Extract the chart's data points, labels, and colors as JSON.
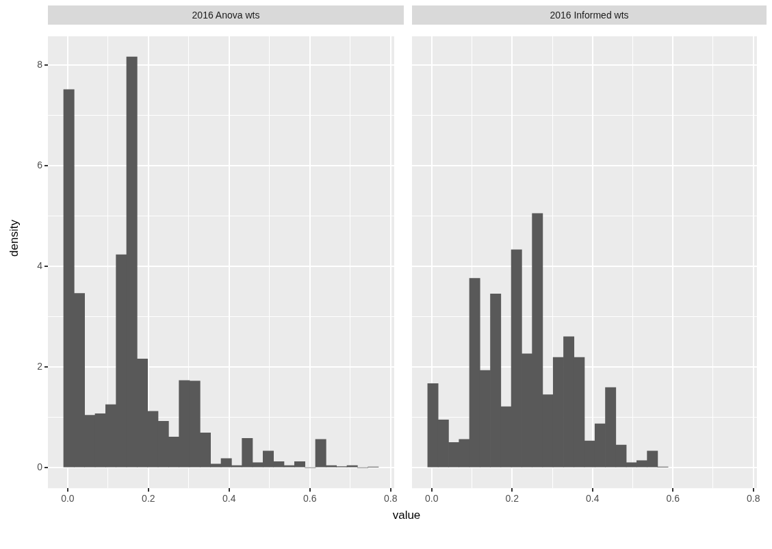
{
  "chart_data": [
    {
      "type": "histogram",
      "title": "2016 Anova wts",
      "ylabel": "density",
      "xlabel": "value",
      "color": "#595959",
      "grid": true,
      "bins": [
        -0.01,
        0.016,
        0.042,
        0.068,
        0.094,
        0.12,
        0.146,
        0.172,
        0.198,
        0.224,
        0.25,
        0.276,
        0.302,
        0.328,
        0.354,
        0.38,
        0.406,
        0.432,
        0.458,
        0.484,
        0.51,
        0.536,
        0.562,
        0.588,
        0.614,
        0.64,
        0.666,
        0.692,
        0.718,
        0.744,
        0.77
      ],
      "values": [
        7.51,
        3.46,
        1.04,
        1.07,
        1.25,
        4.23,
        8.16,
        2.16,
        1.12,
        0.92,
        0.61,
        1.73,
        1.72,
        0.69,
        0.07,
        0.18,
        0.04,
        0.58,
        0.1,
        0.33,
        0.12,
        0.04,
        0.12,
        0,
        0.56,
        0.04,
        0.02,
        0.04,
        0,
        0.01
      ],
      "xlim": [
        -0.049,
        0.809
      ],
      "ylim": [
        -0.41,
        8.57
      ],
      "xticks": [
        {
          "value": 0,
          "label": "0.0"
        },
        {
          "value": 0.1,
          "label": null
        },
        {
          "value": 0.2,
          "label": "0.2"
        },
        {
          "value": 0.3,
          "label": null
        },
        {
          "value": 0.4,
          "label": "0.4"
        },
        {
          "value": 0.5,
          "label": null
        },
        {
          "value": 0.6,
          "label": "0.6"
        },
        {
          "value": 0.7,
          "label": null
        },
        {
          "value": 0.8,
          "label": "0.8"
        }
      ],
      "yticks": [
        0,
        {
          "value": 1,
          "label": null
        },
        2,
        {
          "value": 3,
          "label": null
        },
        4,
        {
          "value": 5,
          "label": null
        },
        6,
        {
          "value": 7,
          "label": null
        },
        8
      ]
    },
    {
      "type": "histogram",
      "title": "2016 Informed wts",
      "color": "#595959",
      "grid": true,
      "tick_labels": "x",
      "bins": [
        -0.01,
        0.016,
        0.042,
        0.068,
        0.094,
        0.12,
        0.146,
        0.172,
        0.198,
        0.224,
        0.25,
        0.276,
        0.302,
        0.328,
        0.354,
        0.38,
        0.406,
        0.432,
        0.458,
        0.484,
        0.51,
        0.536,
        0.562,
        0.588
      ],
      "values": [
        1.67,
        0.95,
        0.5,
        0.56,
        3.76,
        1.93,
        3.45,
        1.21,
        4.33,
        2.26,
        5.05,
        1.45,
        2.19,
        2.6,
        2.19,
        0.53,
        0.87,
        1.59,
        0.45,
        0.1,
        0.14,
        0.33,
        0.01
      ],
      "xlim": [
        -0.049,
        0.809
      ],
      "ylim": [
        -0.41,
        8.57
      ],
      "xticks": [
        {
          "value": 0,
          "label": "0.0"
        },
        {
          "value": 0.1,
          "label": null
        },
        {
          "value": 0.2,
          "label": "0.2"
        },
        {
          "value": 0.3,
          "label": null
        },
        {
          "value": 0.4,
          "label": "0.4"
        },
        {
          "value": 0.5,
          "label": null
        },
        {
          "value": 0.6,
          "label": "0.6"
        },
        {
          "value": 0.7,
          "label": null
        },
        {
          "value": 0.8,
          "label": "0.8"
        }
      ],
      "yticks": [
        0,
        {
          "value": 1,
          "label": null
        },
        2,
        {
          "value": 3,
          "label": null
        },
        4,
        {
          "value": 5,
          "label": null
        },
        6,
        {
          "value": 7,
          "label": null
        },
        8
      ]
    }
  ]
}
